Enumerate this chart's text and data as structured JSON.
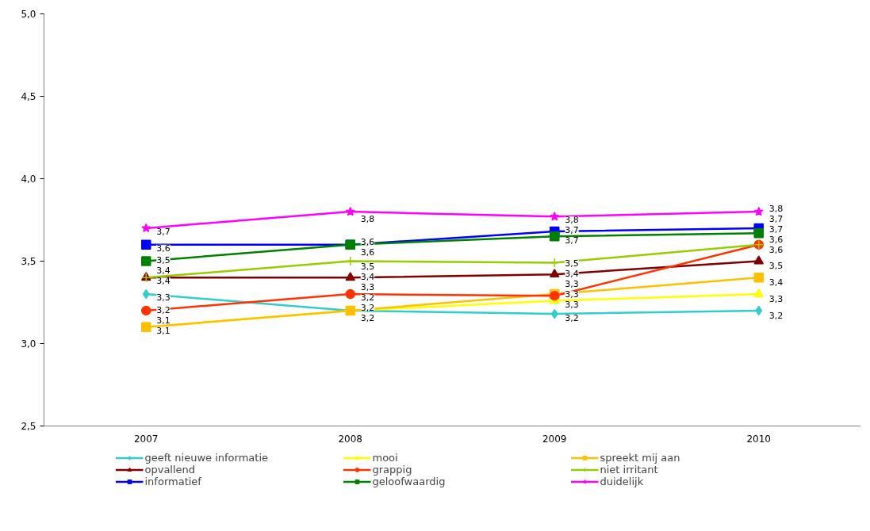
{
  "chart_data": {
    "type": "line",
    "categories": [
      "2007",
      "2008",
      "2009",
      "2010"
    ],
    "ylim": [
      2.5,
      5.0
    ],
    "yticks": [
      {
        "value": 2.5,
        "label": "2,5"
      },
      {
        "value": 3.0,
        "label": "3,0"
      },
      {
        "value": 3.5,
        "label": "3,5"
      },
      {
        "value": 4.0,
        "label": "4,0"
      },
      {
        "value": 4.5,
        "label": "4,5"
      },
      {
        "value": 5.0,
        "label": "5,0"
      }
    ],
    "grid": false,
    "legend": "bottom",
    "series": [
      {
        "name": "geeft nieuwe informatie",
        "color": "#33cccc",
        "marker": "diamond",
        "values": [
          3.3,
          3.2,
          3.18,
          3.2
        ],
        "value_labels": [
          "3,3",
          "3,2",
          "3,2",
          "3,2"
        ]
      },
      {
        "name": "mooi",
        "color": "#ffff00",
        "marker": "triangle",
        "values": [
          3.1,
          3.2,
          3.26,
          3.3
        ],
        "value_labels": [
          "3,1",
          "3,2",
          "3,3",
          "3,3"
        ]
      },
      {
        "name": "spreekt mij aan",
        "color": "#ffc000",
        "marker": "square",
        "values": [
          3.1,
          3.2,
          3.3,
          3.4
        ],
        "value_labels": [
          "3,1",
          "3,2",
          "3,3",
          "3,4"
        ]
      },
      {
        "name": "opvallend",
        "color": "#800000",
        "marker": "triangle",
        "values": [
          3.4,
          3.4,
          3.42,
          3.5
        ],
        "value_labels": [
          "3,4",
          "3,4",
          "3,4",
          "3,5"
        ]
      },
      {
        "name": "grappig",
        "color": "#ff3300",
        "marker": "circle",
        "values": [
          3.2,
          3.3,
          3.29,
          3.6
        ],
        "value_labels": [
          "3,2",
          "3,3",
          "3,3",
          "3,6"
        ]
      },
      {
        "name": "niet irritant",
        "color": "#99cc00",
        "marker": "cross",
        "values": [
          3.4,
          3.5,
          3.49,
          3.6
        ],
        "value_labels": [
          "3,4",
          "3,5",
          "3,5",
          "3,6"
        ]
      },
      {
        "name": "informatief",
        "color": "#0000ff",
        "marker": "square",
        "values": [
          3.6,
          3.6,
          3.68,
          3.7
        ],
        "value_labels": [
          "3,6",
          "3,6",
          "3,7",
          "3,7"
        ]
      },
      {
        "name": "geloofwaardig",
        "color": "#008000",
        "marker": "square",
        "values": [
          3.5,
          3.6,
          3.65,
          3.67
        ],
        "value_labels": [
          "3,5",
          "3,6",
          "3,7",
          "3,7"
        ]
      },
      {
        "name": "duidelijk",
        "color": "#ff00ff",
        "marker": "star",
        "values": [
          3.7,
          3.8,
          3.77,
          3.8
        ],
        "value_labels": [
          "3,7",
          "3,8",
          "3,8",
          "3,8"
        ]
      }
    ]
  }
}
